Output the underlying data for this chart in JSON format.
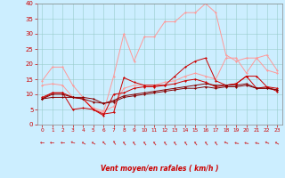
{
  "xlabel": "Vent moyen/en rafales ( km/h )",
  "x": [
    0,
    1,
    2,
    3,
    4,
    5,
    6,
    7,
    8,
    9,
    10,
    11,
    12,
    13,
    14,
    15,
    16,
    17,
    18,
    19,
    20,
    21,
    22,
    23
  ],
  "series": [
    {
      "color": "#ff9999",
      "values": [
        14.5,
        19,
        19,
        13,
        9,
        5,
        4,
        16,
        30,
        21,
        29,
        29,
        34,
        34,
        37,
        37,
        40,
        37,
        23,
        21,
        22,
        22,
        18,
        17
      ]
    },
    {
      "color": "#ff9999",
      "values": [
        13,
        13.5,
        13,
        9,
        8.5,
        5.5,
        4.5,
        6,
        12,
        13,
        13,
        13,
        14,
        14.5,
        16,
        17,
        16,
        15,
        22,
        22,
        17,
        22,
        23,
        18
      ]
    },
    {
      "color": "#cc0000",
      "values": [
        8.5,
        10.5,
        10.5,
        9,
        8.5,
        5,
        3.5,
        4,
        15.5,
        14,
        13,
        13,
        13,
        16,
        19,
        21,
        22,
        14.5,
        13,
        13.5,
        16,
        16,
        12.5,
        11
      ]
    },
    {
      "color": "#cc0000",
      "values": [
        9,
        10.5,
        10.5,
        5,
        5.5,
        5,
        3,
        10,
        10.5,
        12,
        12.5,
        12.5,
        13,
        13.5,
        14.5,
        15,
        14,
        12.5,
        13,
        13.5,
        16,
        12,
        12.5,
        12
      ]
    },
    {
      "color": "#880000",
      "values": [
        8.5,
        10,
        10,
        9,
        9,
        8.5,
        7,
        8,
        9.5,
        10,
        10.5,
        11,
        11.5,
        12,
        12.5,
        13,
        13.5,
        13,
        13,
        13,
        13.5,
        12,
        12,
        11.5
      ]
    },
    {
      "color": "#880000",
      "values": [
        8.5,
        9,
        9,
        9,
        8.5,
        7.5,
        7,
        7.5,
        9,
        9.5,
        10,
        10.5,
        11,
        11.5,
        12,
        12,
        12.5,
        12,
        12.5,
        12.5,
        13,
        12,
        12,
        11.5
      ]
    }
  ],
  "ylim": [
    0,
    40
  ],
  "yticks": [
    0,
    5,
    10,
    15,
    20,
    25,
    30,
    35,
    40
  ],
  "xticks": [
    0,
    1,
    2,
    3,
    4,
    5,
    6,
    7,
    8,
    9,
    10,
    11,
    12,
    13,
    14,
    15,
    16,
    17,
    18,
    19,
    20,
    21,
    22,
    23
  ],
  "bg_color": "#cceeff",
  "grid_color": "#99cccc",
  "tick_color": "#cc0000",
  "label_color": "#cc0000",
  "arrow_rotations": [
    0,
    0,
    0,
    -15,
    -30,
    -30,
    -45,
    -60,
    -55,
    -55,
    -55,
    -55,
    -55,
    -55,
    -55,
    -55,
    -55,
    -55,
    -20,
    -10,
    -10,
    -10,
    -20,
    -30
  ]
}
